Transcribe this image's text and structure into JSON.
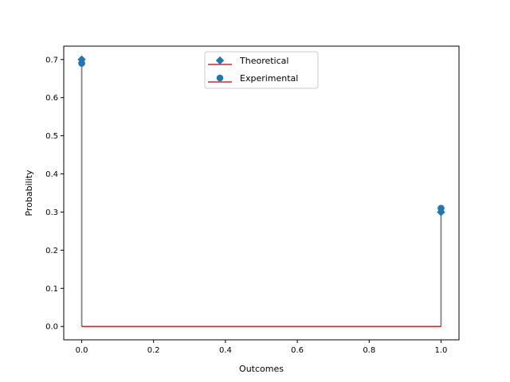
{
  "chart_data": {
    "type": "stem",
    "title": "",
    "xlabel": "Outcomes",
    "ylabel": "Probability",
    "xlim": [
      -0.05,
      1.05
    ],
    "ylim": [
      -0.035,
      0.735
    ],
    "xticks": [
      0.0,
      0.2,
      0.4,
      0.6,
      0.8,
      1.0
    ],
    "xtick_labels": [
      "0.0",
      "0.2",
      "0.4",
      "0.6",
      "0.8",
      "1.0"
    ],
    "yticks": [
      0.0,
      0.1,
      0.2,
      0.3,
      0.4,
      0.5,
      0.6,
      0.7
    ],
    "ytick_labels": [
      "0.0",
      "0.1",
      "0.2",
      "0.3",
      "0.4",
      "0.5",
      "0.6",
      "0.7"
    ],
    "grid": false,
    "legend_position": "upper center",
    "baseline": 0.0,
    "series": [
      {
        "name": "Theoretical",
        "marker": "diamond",
        "x": [
          0,
          1
        ],
        "y": [
          0.7,
          0.3
        ]
      },
      {
        "name": "Experimental",
        "marker": "circle",
        "x": [
          0,
          1
        ],
        "y": [
          0.69,
          0.31
        ]
      }
    ],
    "colors": {
      "marker": "#1f77b4",
      "stem": "#808080",
      "baseline": "#d62728"
    }
  }
}
